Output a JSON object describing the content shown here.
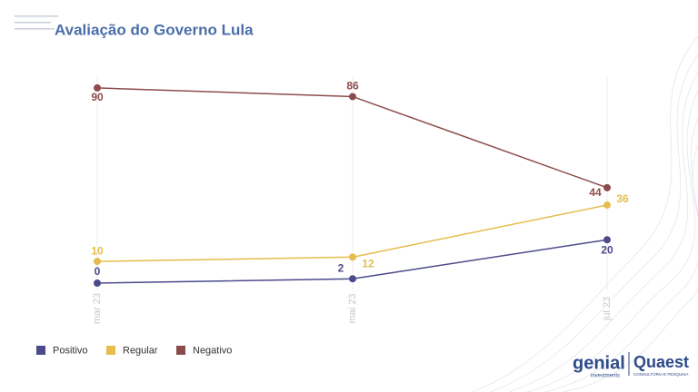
{
  "chart_data": {
    "type": "line",
    "title": "Avaliação do Governo Lula",
    "categories": [
      "mar 23",
      "mai 23",
      "jul 23"
    ],
    "series": [
      {
        "name": "Positivo",
        "color": "#4b4a8c",
        "values": [
          0,
          2,
          20
        ]
      },
      {
        "name": "Regular",
        "color": "#e6bd4c",
        "values": [
          10,
          12,
          36
        ]
      },
      {
        "name": "Negativo",
        "color": "#8e4b4b",
        "values": [
          90,
          86,
          44
        ]
      }
    ],
    "ylim": [
      0,
      100
    ],
    "legend": "bottom-left"
  },
  "logos": {
    "genial": "genial",
    "genial_sub": "investments",
    "quaest": "Quaest",
    "quaest_sub": "CONSULTORIA E PESQUISA"
  }
}
